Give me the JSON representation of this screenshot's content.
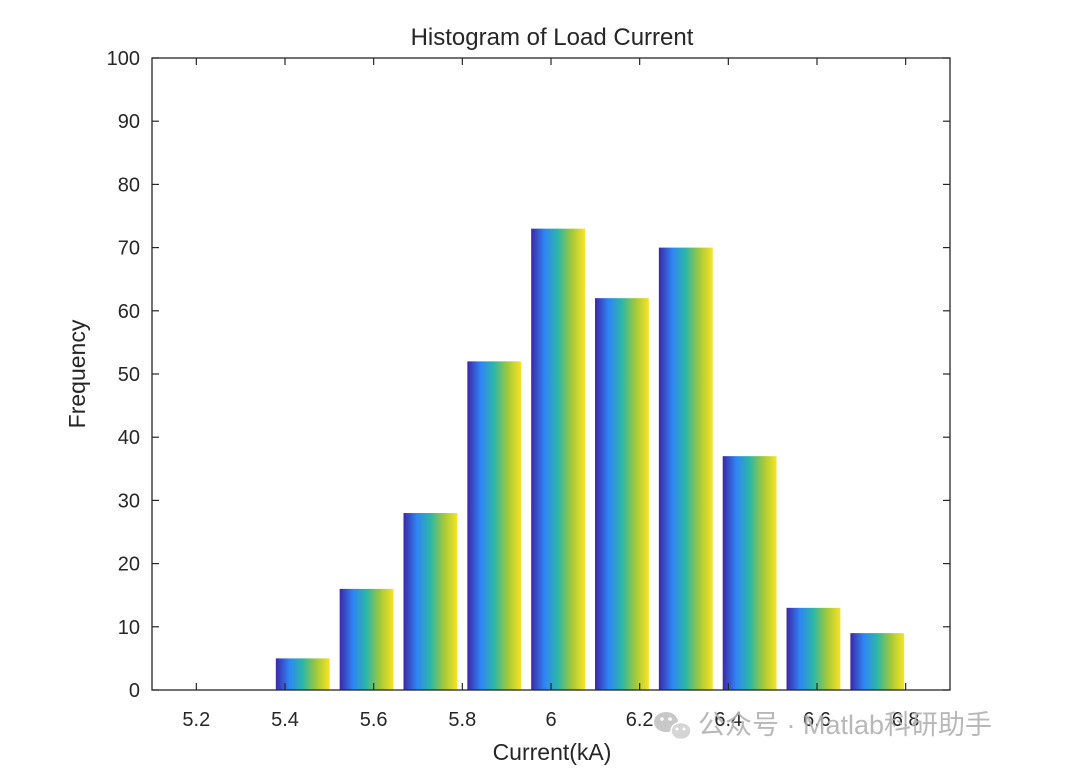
{
  "chart_data": {
    "type": "bar",
    "title": "Histogram of Load Current",
    "xlabel": "Current(kA)",
    "ylabel": "Frequency",
    "xlim": [
      5.1,
      6.9
    ],
    "ylim": [
      0,
      100
    ],
    "xticks": [
      "5.2",
      "5.4",
      "5.6",
      "5.8",
      "6",
      "6.2",
      "6.4",
      "6.6",
      "6.8"
    ],
    "yticks": [
      "0",
      "10",
      "20",
      "30",
      "40",
      "50",
      "60",
      "70",
      "80",
      "90",
      "100"
    ],
    "bin_width": 0.144,
    "bars": [
      {
        "x": 5.44,
        "value": 5
      },
      {
        "x": 5.584,
        "value": 16
      },
      {
        "x": 5.728,
        "value": 28
      },
      {
        "x": 5.872,
        "value": 52
      },
      {
        "x": 6.016,
        "value": 73
      },
      {
        "x": 6.16,
        "value": 62
      },
      {
        "x": 6.304,
        "value": 70
      },
      {
        "x": 6.448,
        "value": 37
      },
      {
        "x": 6.592,
        "value": 13
      },
      {
        "x": 6.736,
        "value": 9
      }
    ],
    "bar_colormap": [
      "#3d26a8",
      "#2f85f5",
      "#2bb7a6",
      "#a2c83a",
      "#f9e325"
    ],
    "grid": false,
    "box": true
  },
  "watermark": {
    "text": "公众号 · Matlab科研助手",
    "icon": "wechat-icon"
  }
}
